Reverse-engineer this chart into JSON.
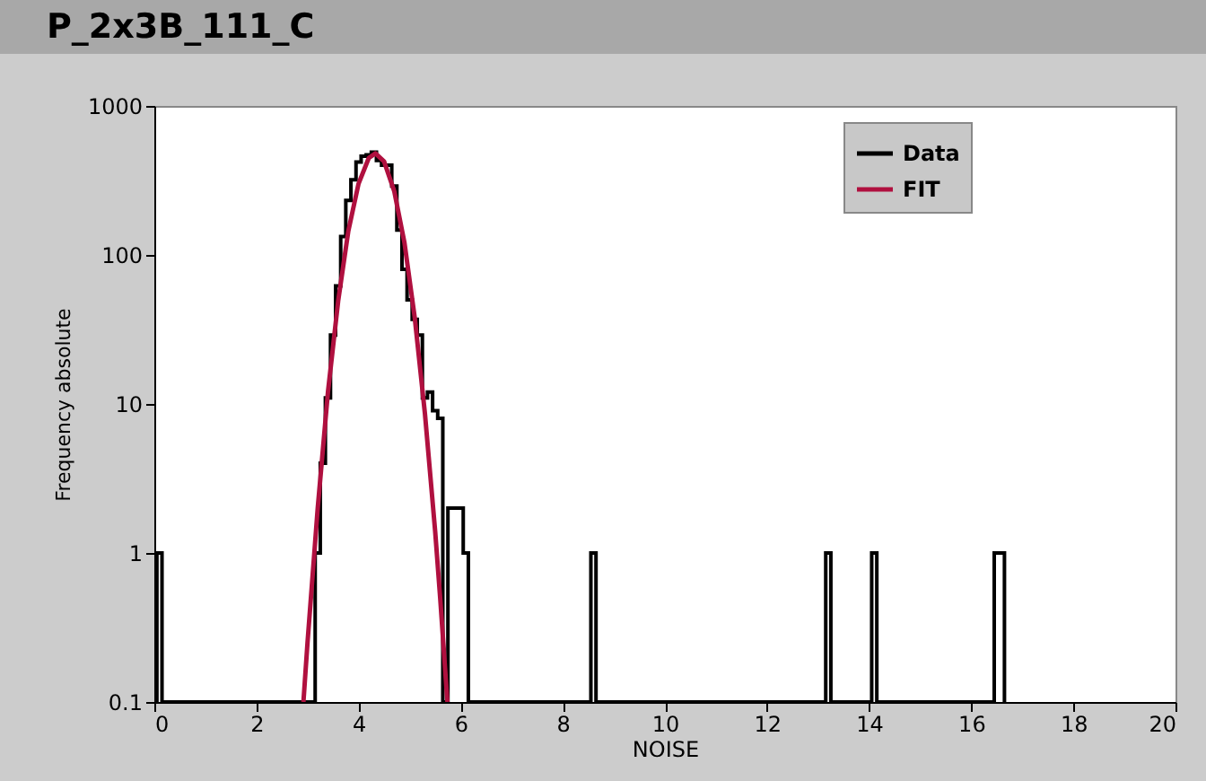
{
  "chart_data": {
    "type": "histogram",
    "title": "P_2x3B_111_C",
    "xlabel": "NOISE",
    "ylabel": "Frequency absolute",
    "bins": [
      0.05,
      0.15,
      3.15,
      3.25,
      3.35,
      3.45,
      3.55,
      3.65,
      3.75,
      3.85,
      3.95,
      4.05,
      4.15,
      4.25,
      4.35,
      4.45,
      4.55,
      4.65,
      4.75,
      4.85,
      4.95,
      5.05,
      5.15,
      5.25,
      5.35,
      5.45,
      5.55,
      5.65,
      5.75,
      5.85,
      5.95,
      6.05,
      6.15,
      8.55,
      8.65,
      13.15,
      13.25,
      14.05,
      14.15,
      16.45,
      16.55,
      16.65
    ],
    "series": [
      {
        "name": "Data",
        "color": "#000000",
        "values": [
          1,
          null,
          1,
          4,
          11,
          29,
          62,
          133,
          232,
          320,
          420,
          460,
          470,
          490,
          430,
          400,
          400,
          290,
          147,
          80,
          50,
          37,
          29,
          11,
          12,
          9,
          8,
          null,
          2,
          2,
          2,
          1,
          null,
          1,
          null,
          1,
          null,
          1,
          null,
          1,
          1
        ]
      },
      {
        "name": "FIT",
        "type": "line",
        "color": "#b0103f",
        "x": [
          2.92,
          3.0,
          3.2,
          3.4,
          3.6,
          3.8,
          4.0,
          4.2,
          4.33,
          4.5,
          4.7,
          4.9,
          5.1,
          5.3,
          5.5,
          5.6,
          5.74
        ],
        "values": [
          0.1,
          0.25,
          2.0,
          12,
          49,
          145,
          301,
          447,
          480,
          424,
          267,
          120,
          38,
          8.6,
          1.4,
          0.49,
          0.1
        ]
      }
    ],
    "log": true,
    "xlim": [
      0,
      20
    ],
    "xticks": [
      0,
      2,
      4,
      6,
      8,
      10,
      12,
      14,
      16,
      18,
      20
    ],
    "ylim": [
      0.1,
      1000
    ],
    "yticks": [
      0.1,
      1,
      10,
      100,
      1000
    ],
    "legend": "top right"
  }
}
